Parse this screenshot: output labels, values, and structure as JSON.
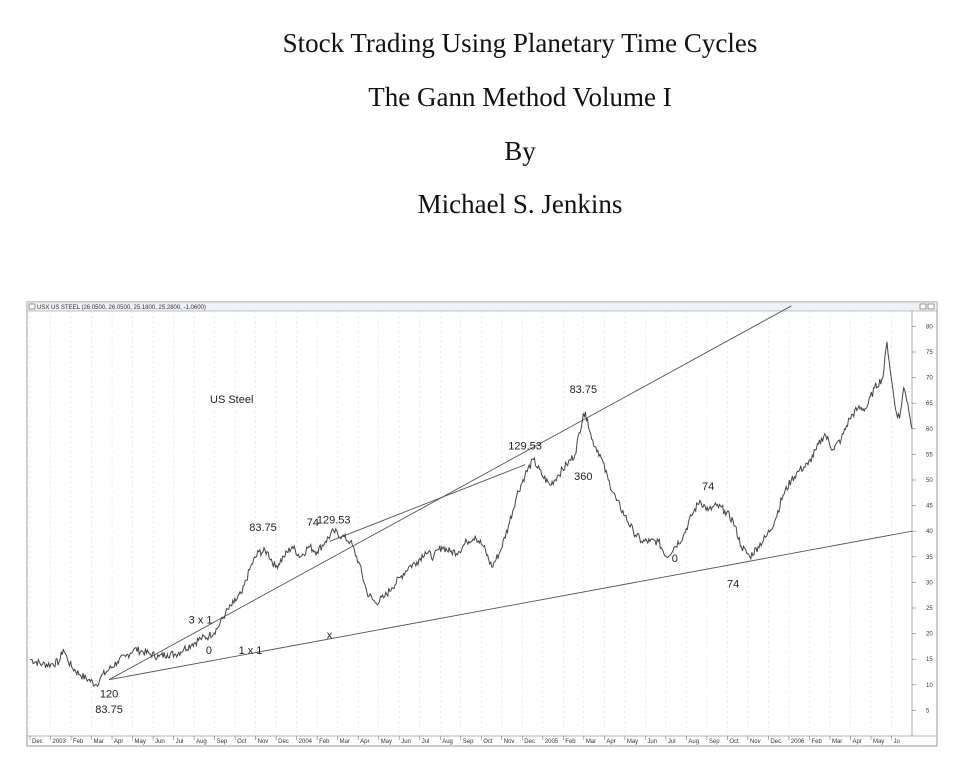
{
  "document": {
    "title_lines": [
      "Stock Trading Using Planetary Time Cycles",
      "The Gann Method Volume I",
      "By",
      "Michael S. Jenkins"
    ]
  },
  "chart_data": {
    "type": "line",
    "header": "USX US STEEL (26.0500, 26.0500, 25.1800, 25.2800, -1.0600)",
    "chart_label": "US Steel",
    "x_tick_labels": [
      "Dec",
      "2003",
      "Feb",
      "Mar",
      "Apr",
      "May",
      "Jun",
      "Jul",
      "Aug",
      "Sep",
      "Oct",
      "Nov",
      "Dec",
      "2004",
      "Feb",
      "Mar",
      "Apr",
      "May",
      "Jun",
      "Jul",
      "Aug",
      "Sep",
      "Oct",
      "Nov",
      "Dec",
      "2005",
      "Feb",
      "Mar",
      "Apr",
      "May",
      "Jun",
      "Jul",
      "Aug",
      "Sep",
      "Oct",
      "Nov",
      "Dec",
      "2006",
      "Feb",
      "Mar",
      "Apr",
      "May",
      "Ju"
    ],
    "y_ticks": [
      5,
      10,
      15,
      20,
      25,
      30,
      35,
      40,
      45,
      50,
      55,
      60,
      65,
      70,
      75,
      80
    ],
    "ylim": [
      0,
      84
    ],
    "series": [
      {
        "points": [
          [
            0,
            15
          ],
          [
            3,
            14
          ],
          [
            5,
            14
          ],
          [
            7,
            14.5
          ],
          [
            8,
            17
          ],
          [
            9,
            15
          ],
          [
            10,
            13.5
          ],
          [
            12,
            12
          ],
          [
            14,
            11
          ],
          [
            16,
            10
          ],
          [
            17,
            11.5
          ],
          [
            19,
            13
          ],
          [
            21,
            14.5
          ],
          [
            23,
            15.5
          ],
          [
            25,
            17
          ],
          [
            27,
            16.5
          ],
          [
            29,
            16
          ],
          [
            31,
            15.5
          ],
          [
            33,
            16
          ],
          [
            35,
            16
          ],
          [
            37,
            17
          ],
          [
            39,
            18
          ],
          [
            41,
            19
          ],
          [
            43,
            19.5
          ],
          [
            45,
            21
          ],
          [
            47,
            24
          ],
          [
            49,
            26
          ],
          [
            51,
            28
          ],
          [
            53,
            33
          ],
          [
            55,
            36
          ],
          [
            57,
            36
          ],
          [
            59,
            33
          ],
          [
            61,
            35
          ],
          [
            63,
            37
          ],
          [
            65,
            35
          ],
          [
            67,
            37
          ],
          [
            69,
            36
          ],
          [
            71,
            38
          ],
          [
            73,
            40
          ],
          [
            75,
            39
          ],
          [
            77,
            38
          ],
          [
            79,
            34
          ],
          [
            81,
            28
          ],
          [
            83,
            26
          ],
          [
            85,
            27
          ],
          [
            87,
            29
          ],
          [
            89,
            31
          ],
          [
            91,
            33
          ],
          [
            93,
            34
          ],
          [
            95,
            36
          ],
          [
            97,
            35
          ],
          [
            99,
            37
          ],
          [
            101,
            36
          ],
          [
            103,
            36
          ],
          [
            105,
            38
          ],
          [
            107,
            39
          ],
          [
            109,
            37
          ],
          [
            111,
            33
          ],
          [
            113,
            36
          ],
          [
            115,
            41
          ],
          [
            117,
            47
          ],
          [
            119,
            51
          ],
          [
            121,
            54
          ],
          [
            123,
            51
          ],
          [
            125,
            49
          ],
          [
            127,
            51
          ],
          [
            129,
            53
          ],
          [
            131,
            55
          ],
          [
            133,
            63
          ],
          [
            134,
            62
          ],
          [
            135,
            58
          ],
          [
            137,
            55
          ],
          [
            139,
            50
          ],
          [
            141,
            46
          ],
          [
            143,
            43
          ],
          [
            145,
            40
          ],
          [
            147,
            38
          ],
          [
            149,
            38
          ],
          [
            151,
            38
          ],
          [
            153,
            35
          ],
          [
            155,
            37
          ],
          [
            157,
            39
          ],
          [
            159,
            43
          ],
          [
            161,
            46
          ],
          [
            163,
            44
          ],
          [
            165,
            45
          ],
          [
            167,
            44
          ],
          [
            169,
            42
          ],
          [
            171,
            37
          ],
          [
            173,
            35
          ],
          [
            175,
            37
          ],
          [
            177,
            39
          ],
          [
            179,
            42
          ],
          [
            181,
            47
          ],
          [
            183,
            50
          ],
          [
            185,
            52
          ],
          [
            187,
            53
          ],
          [
            189,
            56
          ],
          [
            191,
            59
          ],
          [
            193,
            56
          ],
          [
            195,
            58
          ],
          [
            197,
            62
          ],
          [
            199,
            64
          ],
          [
            201,
            64
          ],
          [
            203,
            68
          ],
          [
            205,
            70
          ],
          [
            206,
            77
          ],
          [
            207,
            70
          ],
          [
            208,
            64
          ],
          [
            209,
            62
          ],
          [
            210,
            68
          ],
          [
            211,
            65
          ],
          [
            212,
            60
          ]
        ]
      }
    ],
    "annotations": [
      {
        "text": "83.75",
        "x": 56,
        "y": 40
      },
      {
        "text": "74",
        "x": 68,
        "y": 41
      },
      {
        "text": "129.53",
        "x": 73,
        "y": 41.5
      },
      {
        "text": "129.53",
        "x": 119,
        "y": 56
      },
      {
        "text": "83.75",
        "x": 133,
        "y": 67
      },
      {
        "text": "360",
        "x": 133,
        "y": 50
      },
      {
        "text": "74",
        "x": 163,
        "y": 48
      },
      {
        "text": "0",
        "x": 155,
        "y": 34
      },
      {
        "text": "74",
        "x": 169,
        "y": 29
      },
      {
        "text": "3 x 1",
        "x": 41,
        "y": 22
      },
      {
        "text": "0",
        "x": 43,
        "y": 16
      },
      {
        "text": "1 x 1",
        "x": 53,
        "y": 16
      },
      {
        "text": "x",
        "x": 72,
        "y": 19
      },
      {
        "text": "120",
        "x": 19,
        "y": 7.5
      },
      {
        "text": "83.75",
        "x": 19,
        "y": 4.5
      }
    ],
    "trend_lines": [
      {
        "name": "3 x 1",
        "from": [
          19,
          11
        ],
        "to": [
          183,
          84
        ]
      },
      {
        "name": "1 x 1",
        "from": [
          19,
          11
        ],
        "to": [
          212,
          40
        ]
      },
      {
        "from": [
          72,
          38
        ],
        "to": [
          119,
          53
        ]
      }
    ]
  }
}
